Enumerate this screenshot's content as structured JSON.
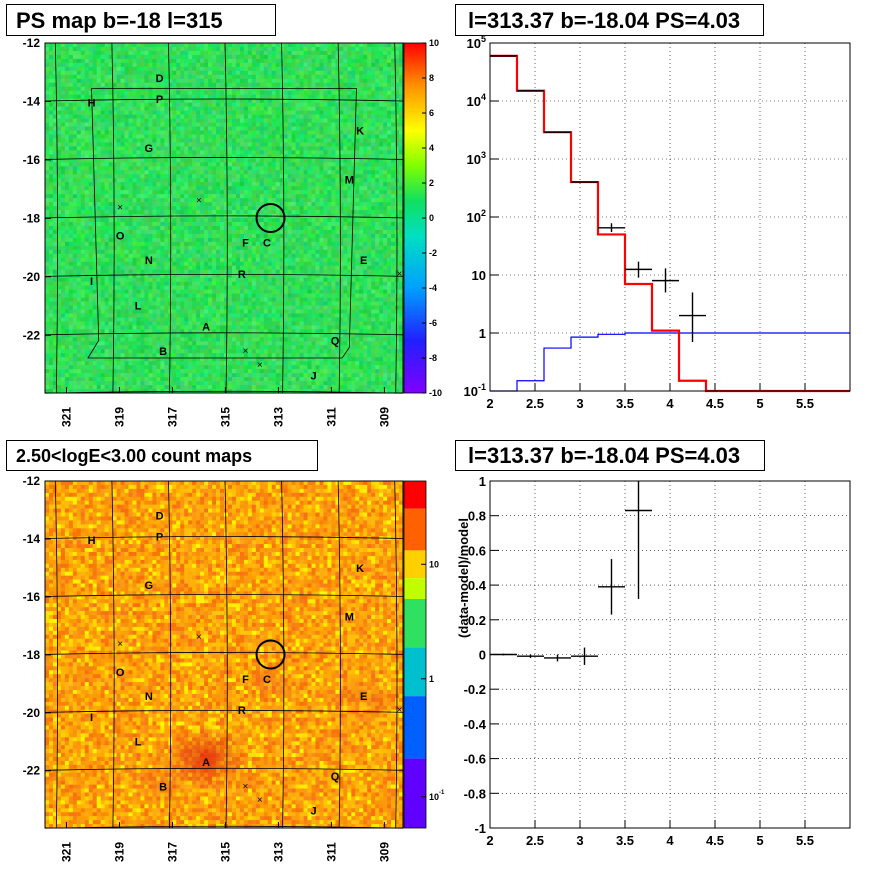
{
  "titles": {
    "top_left": "PS map b=-18 l=315",
    "top_right": "l=313.37 b=-18.04 PS=4.03",
    "bottom_left": "2.50<logE<3.00 count maps",
    "bottom_right": "l=313.37 b=-18.04 PS=4.03"
  },
  "colors": {
    "data": "#000000",
    "model": "#ff0000",
    "background": "#0000ff"
  },
  "chart_data": [
    {
      "type": "heatmap",
      "title": "PS map b=-18 l=315",
      "x_ticks": [
        "321",
        "319",
        "317",
        "315",
        "313",
        "311",
        "309"
      ],
      "y_ticks": [
        "-12",
        "-14",
        "-16",
        "-18",
        "-20",
        "-22"
      ],
      "colorbar": {
        "min": -10,
        "max": 10,
        "ticks": [
          "10",
          "8",
          "6",
          "4",
          "2",
          "0",
          "-2",
          "-4",
          "-6",
          "-8",
          "-10"
        ]
      },
      "labels": [
        "D",
        "P",
        "H",
        "K",
        "G",
        "M",
        "O",
        "F",
        "C",
        "N",
        "E",
        "R",
        "I",
        "L",
        "A",
        "Q",
        "B",
        "J"
      ],
      "marker": "circle at l=313.37 b=-18.04"
    },
    {
      "type": "line",
      "title": "l=313.37 b=-18.04 PS=4.03",
      "y_scale": "log",
      "xlim": [
        2,
        6
      ],
      "ylim": [
        0.1,
        100000
      ],
      "x_ticks": [
        "2",
        "2.5",
        "3",
        "3.5",
        "4",
        "4.5",
        "5",
        "5.5"
      ],
      "y_ticks": [
        "10^5",
        "10^4",
        "10^3",
        "10^2",
        "10",
        "1",
        "10^-1"
      ],
      "bin_edges": [
        2.0,
        2.3,
        2.6,
        2.9,
        3.2,
        3.5,
        3.8,
        4.1,
        4.4,
        4.7,
        5.0,
        5.3,
        5.6,
        5.9,
        6.0
      ],
      "series": [
        {
          "values": [
            60000,
            15000,
            2900,
            400,
            50,
            7,
            1.1,
            0.15,
            0.1,
            0.1,
            0.1,
            0.1,
            0.1,
            0.1
          ]
        },
        {
          "values": [
            0.09,
            0.15,
            0.55,
            0.85,
            0.95,
            1,
            1,
            1,
            1,
            1,
            1,
            1,
            1,
            1
          ]
        }
      ],
      "data_points": [
        {
          "x": 2.15,
          "y": 60000,
          "xerr": 0.15
        },
        {
          "x": 2.45,
          "y": 15000,
          "xerr": 0.15
        },
        {
          "x": 2.75,
          "y": 2900,
          "xerr": 0.15
        },
        {
          "x": 3.05,
          "y": 400,
          "xerr": 0.15
        },
        {
          "x": 3.35,
          "y": 65,
          "xerr": 0.15,
          "ylo": 55,
          "yhi": 78
        },
        {
          "x": 3.65,
          "y": 12.5,
          "xerr": 0.15,
          "ylo": 9,
          "yhi": 17
        },
        {
          "x": 3.95,
          "y": 8,
          "xerr": 0.15,
          "ylo": 5,
          "yhi": 13
        },
        {
          "x": 4.25,
          "y": 2,
          "xerr": 0.15,
          "ylo": 0.7,
          "yhi": 5
        }
      ]
    },
    {
      "type": "heatmap",
      "title": "2.50<logE<3.00 count maps",
      "x_ticks": [
        "321",
        "319",
        "317",
        "315",
        "313",
        "311",
        "309"
      ],
      "y_ticks": [
        "-12",
        "-14",
        "-16",
        "-18",
        "-20",
        "-22"
      ],
      "colorbar": {
        "scale": "log",
        "ticks": [
          "10",
          "1",
          "10^-1"
        ]
      },
      "labels": [
        "D",
        "P",
        "H",
        "K",
        "G",
        "M",
        "O",
        "F",
        "C",
        "N",
        "E",
        "R",
        "I",
        "L",
        "A",
        "Q",
        "B",
        "J"
      ],
      "marker": "circle at l=313.37 b=-18.04"
    },
    {
      "type": "scatter",
      "title": "l=313.37 b=-18.04 PS=4.03",
      "ylabel": "(data-model)/model",
      "xlim": [
        2,
        6
      ],
      "ylim": [
        -1,
        1
      ],
      "x_ticks": [
        "2",
        "2.5",
        "3",
        "3.5",
        "4",
        "4.5",
        "5",
        "5.5"
      ],
      "y_ticks": [
        "1",
        "0.8",
        "0.6",
        "0.4",
        "0.2",
        "0",
        "-0.2",
        "-0.4",
        "-0.6",
        "-0.8",
        "-1"
      ],
      "points": [
        {
          "x": 2.15,
          "y": 0.0,
          "xerr": 0.15,
          "yerr": 0.005
        },
        {
          "x": 2.45,
          "y": -0.01,
          "xerr": 0.15,
          "yerr": 0.01
        },
        {
          "x": 2.75,
          "y": -0.02,
          "xerr": 0.15,
          "yerr": 0.02
        },
        {
          "x": 3.05,
          "y": -0.01,
          "xerr": 0.15,
          "yerr": 0.05
        },
        {
          "x": 3.35,
          "y": 0.39,
          "xerr": 0.15,
          "yerr": 0.16
        },
        {
          "x": 3.65,
          "y": 0.83,
          "xerr": 0.15,
          "yerr": 0.51
        }
      ]
    }
  ]
}
